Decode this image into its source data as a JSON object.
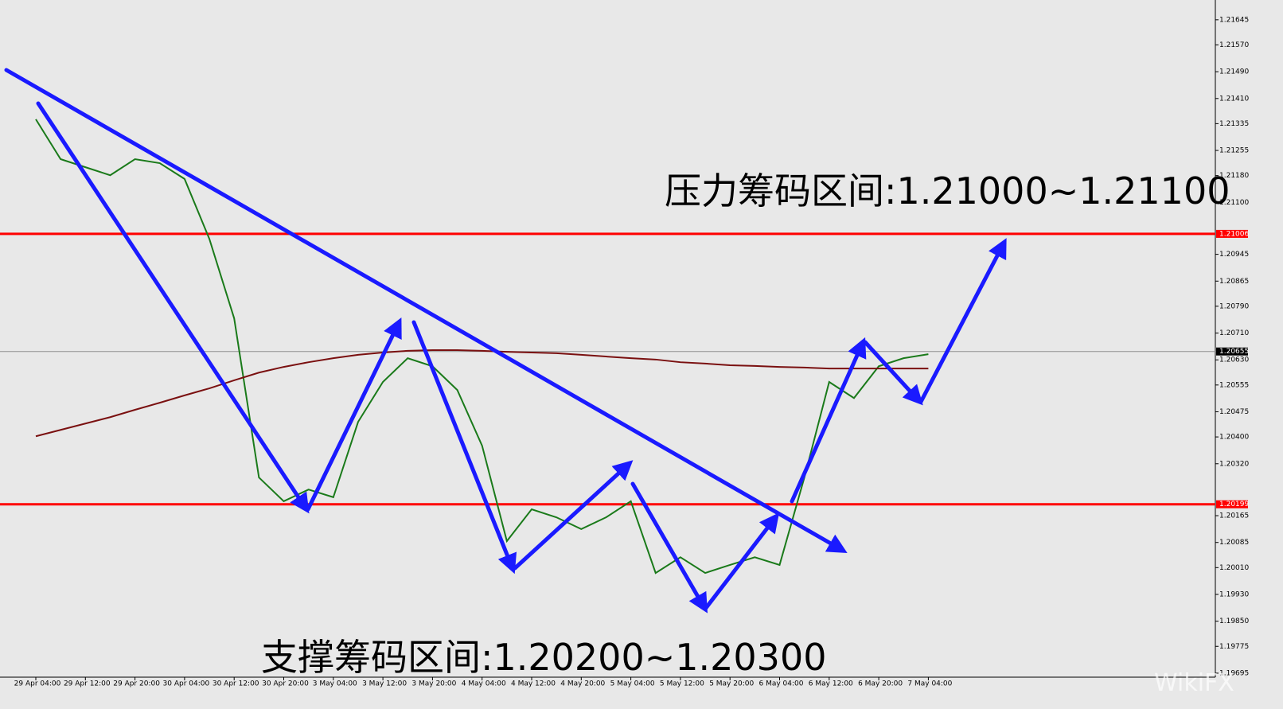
{
  "chart_data": {
    "type": "line",
    "annotations": [
      "压力筹码区间:1.21000~1.21100",
      "支撑筹码区间:1.20200~1.20300"
    ],
    "watermark": "WikiFX",
    "categories": [
      "29 Apr 04:00",
      null,
      "29 Apr 12:00",
      null,
      "29 Apr 20:00",
      null,
      "30 Apr 04:00",
      null,
      "30 Apr 12:00",
      null,
      "30 Apr 20:00",
      null,
      "3 May 04:00",
      null,
      "3 May 12:00",
      null,
      "3 May 20:00",
      null,
      "4 May 04:00",
      null,
      "4 May 12:00",
      null,
      "4 May 20:00",
      null,
      "5 May 04:00",
      null,
      "5 May 12:00",
      null,
      "5 May 20:00",
      null,
      "6 May 04:00",
      null,
      "6 May 12:00",
      null,
      "6 May 20:00",
      null,
      "7 May 04:00"
    ],
    "series": [
      {
        "color": "#1a7a1a",
        "values": [
          1.21348,
          1.21229,
          1.21205,
          1.21181,
          1.21229,
          1.21217,
          1.2117,
          1.20991,
          1.20754,
          1.20279,
          1.20208,
          1.20243,
          1.2022,
          1.20445,
          1.20564,
          1.20635,
          1.20611,
          1.2054,
          1.20374,
          1.20089,
          1.20184,
          1.2016,
          1.20125,
          1.2016,
          1.20208,
          1.19994,
          1.20041,
          1.19994,
          1.20018,
          1.20041,
          1.20018,
          1.20279,
          1.20564,
          1.20516,
          1.20611,
          1.20635,
          1.20647
        ]
      },
      {
        "color": "#7a1010",
        "values": [
          1.20402,
          1.20421,
          1.2044,
          1.20459,
          1.20481,
          1.20502,
          1.20524,
          1.20545,
          1.20569,
          1.20592,
          1.20609,
          1.20623,
          1.20635,
          1.20645,
          1.20652,
          1.20657,
          1.20659,
          1.20659,
          1.20657,
          1.20654,
          1.20652,
          1.2065,
          1.20645,
          1.2064,
          1.20635,
          1.20631,
          1.20623,
          1.20619,
          1.20614,
          1.20612,
          1.20609,
          1.20607,
          1.20604,
          1.20604,
          1.20604,
          1.20604,
          1.20604
        ]
      }
    ],
    "levels": [
      {
        "value": 1.21006,
        "label": "1.21006",
        "color": "#ff0000"
      },
      {
        "value": 1.20199,
        "label": "1.20199",
        "color": "#ff0000"
      },
      {
        "value": 1.20655,
        "label": "1.20655",
        "color": "#909090"
      }
    ],
    "ylim": [
      1.19683,
      1.21704
    ],
    "yticks": [
      {
        "value": 1.21645,
        "label": "1.21645"
      },
      {
        "value": 1.2157,
        "label": "1.21570"
      },
      {
        "value": 1.2149,
        "label": "1.21490"
      },
      {
        "value": 1.2141,
        "label": "1.21410"
      },
      {
        "value": 1.21335,
        "label": "1.21335"
      },
      {
        "value": 1.21255,
        "label": "1.21255"
      },
      {
        "value": 1.2118,
        "label": "1.21180"
      },
      {
        "value": 1.211,
        "label": "1.21100"
      },
      {
        "value": 1.20945,
        "label": "1.20945"
      },
      {
        "value": 1.20865,
        "label": "1.20865"
      },
      {
        "value": 1.2079,
        "label": "1.20790"
      },
      {
        "value": 1.2071,
        "label": "1.20710"
      },
      {
        "value": 1.2063,
        "label": "1.20630"
      },
      {
        "value": 1.20555,
        "label": "1.20555"
      },
      {
        "value": 1.20475,
        "label": "1.20475"
      },
      {
        "value": 1.204,
        "label": "1.20400"
      },
      {
        "value": 1.2032,
        "label": "1.20320"
      },
      {
        "value": 1.20165,
        "label": "1.20165"
      },
      {
        "value": 1.20085,
        "label": "1.20085"
      },
      {
        "value": 1.2001,
        "label": "1.20010"
      },
      {
        "value": 1.1993,
        "label": "1.19930"
      },
      {
        "value": 1.1985,
        "label": "1.19850"
      },
      {
        "value": 1.19775,
        "label": "1.19775"
      },
      {
        "value": 1.19695,
        "label": "1.19695"
      }
    ]
  }
}
